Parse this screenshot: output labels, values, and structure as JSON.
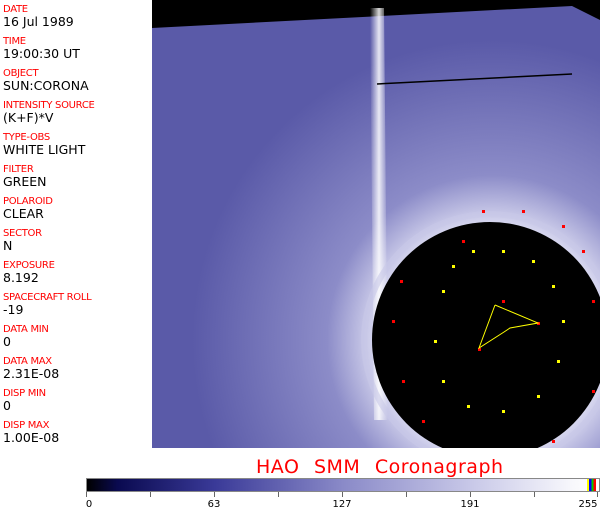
{
  "header_fields": [
    {
      "label": "DATE",
      "value": "16 Jul 1989"
    },
    {
      "label": "TIME",
      "value": "19:00:30 UT"
    },
    {
      "label": "OBJECT",
      "value": "SUN:CORONA"
    },
    {
      "label": "INTENSITY SOURCE",
      "value": "(K+F)*V"
    },
    {
      "label": "TYPE-OBS",
      "value": "WHITE LIGHT"
    },
    {
      "label": "FILTER",
      "value": "GREEN"
    },
    {
      "label": "POLAROID",
      "value": "CLEAR"
    },
    {
      "label": "SECTOR",
      "value": "N"
    },
    {
      "label": "EXPOSURE",
      "value": "8.192"
    },
    {
      "label": "SPACECRAFT ROLL",
      "value": "-19"
    },
    {
      "label": "DATA MIN",
      "value": "0"
    },
    {
      "label": "DATA MAX",
      "value": "2.31E-08"
    },
    {
      "label": "DISP MIN",
      "value": "0"
    },
    {
      "label": "DISP MAX",
      "value": "1.00E-08"
    }
  ],
  "title": "HAO  SMM Coronagraph",
  "colorbar": {
    "ticks": [
      "0",
      "63",
      "127",
      "191",
      "255"
    ],
    "min_color": "#000000",
    "max_color": "#ffffff"
  },
  "colors": {
    "label": "#ff0000",
    "overlay_red": "#ff0000",
    "overlay_yellow": "#ffff00"
  }
}
